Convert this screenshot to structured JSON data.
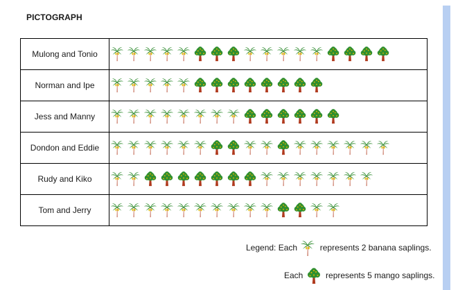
{
  "title": "PICTOGRAPH",
  "chart_data": {
    "type": "table",
    "title": "PICTOGRAPH",
    "rows": [
      {
        "label": "Mulong and Tonio",
        "icons": [
          "banana",
          "banana",
          "banana",
          "banana",
          "banana",
          "mango",
          "mango",
          "mango",
          "banana",
          "banana",
          "banana",
          "banana",
          "banana",
          "mango",
          "mango",
          "mango",
          "mango"
        ],
        "banana_icons": 10,
        "mango_icons": 7,
        "banana_saplings": 20,
        "mango_saplings": 35
      },
      {
        "label": "Norman and Ipe",
        "icons": [
          "banana",
          "banana",
          "banana",
          "banana",
          "banana",
          "mango",
          "mango",
          "mango",
          "mango",
          "mango",
          "mango",
          "mango",
          "mango"
        ],
        "banana_icons": 5,
        "mango_icons": 8,
        "banana_saplings": 10,
        "mango_saplings": 40
      },
      {
        "label": "Jess and Manny",
        "icons": [
          "banana",
          "banana",
          "banana",
          "banana",
          "banana",
          "banana",
          "banana",
          "banana",
          "mango",
          "mango",
          "mango",
          "mango",
          "mango",
          "mango"
        ],
        "banana_icons": 8,
        "mango_icons": 6,
        "banana_saplings": 16,
        "mango_saplings": 30
      },
      {
        "label": "Dondon and Eddie",
        "icons": [
          "banana",
          "banana",
          "banana",
          "banana",
          "banana",
          "banana",
          "mango",
          "mango",
          "banana",
          "banana",
          "mango",
          "banana",
          "banana",
          "banana",
          "banana",
          "banana",
          "banana"
        ],
        "banana_icons": 14,
        "mango_icons": 3,
        "banana_saplings": 28,
        "mango_saplings": 15
      },
      {
        "label": "Rudy and Kiko",
        "icons": [
          "banana",
          "banana",
          "mango",
          "mango",
          "mango",
          "mango",
          "mango",
          "mango",
          "mango",
          "banana",
          "banana",
          "banana",
          "banana",
          "banana",
          "banana",
          "banana"
        ],
        "banana_icons": 9,
        "mango_icons": 7,
        "banana_saplings": 18,
        "mango_saplings": 35
      },
      {
        "label": "Tom and Jerry",
        "icons": [
          "banana",
          "banana",
          "banana",
          "banana",
          "banana",
          "banana",
          "banana",
          "banana",
          "banana",
          "banana",
          "mango",
          "mango",
          "banana",
          "banana"
        ],
        "banana_icons": 12,
        "mango_icons": 2,
        "banana_saplings": 24,
        "mango_saplings": 10
      }
    ],
    "icon_values": {
      "banana": 2,
      "mango": 5
    },
    "legend": [
      {
        "icon": "banana",
        "prefix": "Legend: Each",
        "suffix": "represents 2 banana saplings."
      },
      {
        "icon": "mango",
        "prefix": "Each",
        "suffix": "represents 5 mango saplings."
      }
    ]
  },
  "colors": {
    "banana_leaf": "#2e8b2e",
    "banana_fruit": "#e6c619",
    "mango_canopy": "#2f8f2f",
    "mango_fruit": "#e8b500",
    "trunk": "#b03a1e",
    "scrollbar": "#b8cff2"
  }
}
